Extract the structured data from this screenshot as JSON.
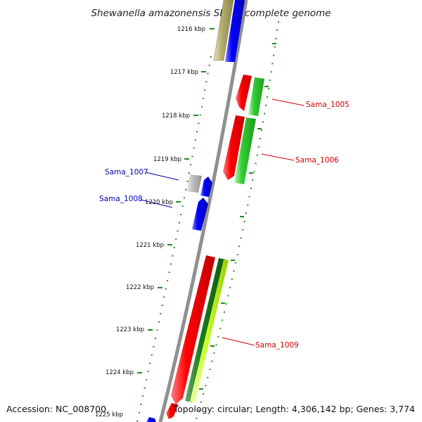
{
  "title": "Shewanella amazonensis SB2B, complete genome",
  "footer": {
    "accession": "Accession: NC_008700",
    "summary": "Topology: circular; Length: 4,306,142 bp; Genes: 3,774"
  },
  "scale_labels": [
    "1216 kbp",
    "1217 kbp",
    "1218 kbp",
    "1219 kbp",
    "1220 kbp",
    "1221 kbp",
    "1222 kbp",
    "1223 kbp",
    "1224 kbp",
    "1225 kbp"
  ],
  "gene_labels": {
    "sama_1005": "Sama_1005",
    "sama_1006": "Sama_1006",
    "sama_1007": "Sama_1007",
    "sama_1008": "Sama_1008",
    "sama_1009": "Sama_1009"
  },
  "colors": {
    "red": "#ff0000",
    "blue": "#0000ff",
    "green": "#33cc33",
    "dark_green": "#1a7a1a",
    "yellow_green": "#ccff33",
    "olive": "#b5ad6e",
    "gray": "#b0b0b0",
    "backbone": "#888888",
    "tick_green": "#228b22",
    "label_red": "#cc0000",
    "label_blue": "#0000aa"
  }
}
